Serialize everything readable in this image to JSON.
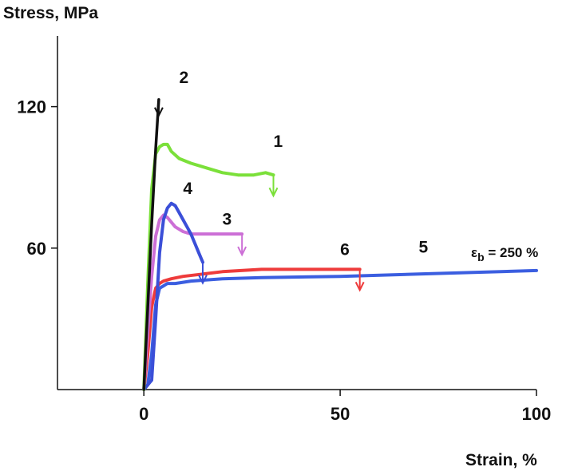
{
  "chart_data": {
    "type": "line",
    "ylabel": "Stress, MPa",
    "xlabel": "Strain, %",
    "xlim": [
      -22,
      100
    ],
    "ylim": [
      0,
      150
    ],
    "x_ticks": [
      0,
      50,
      100
    ],
    "y_ticks": [
      60,
      120
    ],
    "grid": false,
    "legend": "none",
    "annotation": "ε_b = 250 %",
    "series": [
      {
        "name": "1",
        "color": "#7be03a",
        "break_arrow": true,
        "x": [
          0,
          1,
          2,
          3,
          4,
          5,
          6,
          7,
          9,
          12,
          16,
          20,
          24,
          28,
          31,
          33
        ],
        "y": [
          0,
          45,
          85,
          100,
          103,
          104,
          104,
          101,
          98,
          96,
          94,
          92,
          91,
          91,
          92,
          91
        ]
      },
      {
        "name": "2",
        "color": "#111111",
        "break_arrow": true,
        "x": [
          0,
          1,
          2,
          3,
          3.8
        ],
        "y": [
          0,
          35,
          70,
          102,
          123
        ]
      },
      {
        "name": "3",
        "color": "#cc6fd6",
        "break_arrow": true,
        "x": [
          0,
          1,
          2,
          3,
          4,
          5,
          6,
          7,
          8,
          10,
          12,
          16,
          20,
          25
        ],
        "y": [
          0,
          25,
          48,
          65,
          72,
          74,
          73,
          71,
          69,
          67,
          66,
          66,
          66,
          66
        ]
      },
      {
        "name": "4",
        "color": "#3b4fd8",
        "break_arrow": true,
        "x": [
          0,
          2,
          3,
          4,
          5,
          6,
          7,
          8,
          9,
          10,
          11,
          12,
          13,
          14,
          15
        ],
        "y": [
          0,
          4,
          30,
          58,
          72,
          77,
          79,
          78,
          75,
          72,
          69,
          66,
          62,
          58,
          54
        ]
      },
      {
        "name": "5",
        "color": "#3b5ee0",
        "break_arrow": false,
        "x": [
          0,
          1,
          2,
          3,
          4,
          5,
          6,
          8,
          12,
          20,
          30,
          50,
          70,
          100
        ],
        "y": [
          0,
          2,
          15,
          36,
          43,
          44,
          45,
          45,
          46,
          47,
          47.5,
          48,
          49,
          50.5
        ]
      },
      {
        "name": "6",
        "color": "#ee3b3b",
        "break_arrow": true,
        "x": [
          0,
          1,
          2,
          3,
          4,
          5,
          7,
          10,
          15,
          20,
          30,
          40,
          45,
          55
        ],
        "y": [
          0,
          15,
          35,
          43,
          45,
          46,
          47,
          48,
          49,
          50,
          51,
          51,
          51,
          51
        ]
      }
    ],
    "series_labels": [
      {
        "name": "1",
        "x": 33,
        "y": 103
      },
      {
        "name": "2",
        "x": 9,
        "y": 130
      },
      {
        "name": "3",
        "x": 20,
        "y": 70
      },
      {
        "name": "4",
        "x": 10,
        "y": 83
      },
      {
        "name": "5",
        "x": 70,
        "y": 58
      },
      {
        "name": "6",
        "x": 50,
        "y": 57
      }
    ]
  }
}
